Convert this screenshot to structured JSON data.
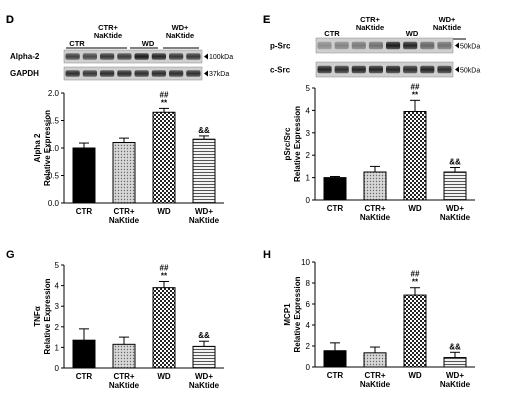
{
  "categories": [
    "CTR",
    "CTR+\nNaKtide",
    "WD",
    "WD+\nNaKtide"
  ],
  "blots": {
    "D": {
      "group_labels": [
        "CTR",
        "CTR+\nNaKtide",
        "WD",
        "WD+\nNaKtide"
      ],
      "rows": [
        {
          "name": "Alpha-2",
          "size": "100kDa"
        },
        {
          "name": "GAPDH",
          "size": "37kDa"
        }
      ]
    },
    "E": {
      "group_labels": [
        "CTR",
        "CTR+\nNaKtide",
        "WD",
        "WD+\nNaKtide"
      ],
      "rows": [
        {
          "name": "p-Src",
          "size": "50kDa"
        },
        {
          "name": "c-Src",
          "size": "50kDa"
        }
      ]
    }
  },
  "chart_data": [
    {
      "panel": "D",
      "type": "bar",
      "categories": [
        "CTR",
        "CTR+\nNaKtide",
        "WD",
        "WD+\nNaKtide"
      ],
      "values": [
        1.0,
        1.1,
        1.65,
        1.16
      ],
      "errors": [
        0.09,
        0.08,
        0.07,
        0.06
      ],
      "ylabel": "Alpha 2\nRelative Expression",
      "ylim": [
        0.0,
        2.0
      ],
      "yticks": [
        "0.0",
        "0.5",
        "1.0",
        "1.5",
        "2.0"
      ],
      "annotations": [
        "",
        "",
        "##\n**",
        "&&"
      ],
      "fills": [
        "solid",
        "dots",
        "check",
        "hatch"
      ]
    },
    {
      "panel": "E",
      "type": "bar",
      "categories": [
        "CTR",
        "CTR+\nNaKtide",
        "WD",
        "WD+\nNaKtide"
      ],
      "values": [
        1.0,
        1.25,
        3.95,
        1.25
      ],
      "errors": [
        0.05,
        0.25,
        0.5,
        0.2
      ],
      "ylabel": "pSrc/Src\nRelative Expression",
      "ylim": [
        0,
        5
      ],
      "yticks": [
        "0",
        "1",
        "2",
        "3",
        "4",
        "5"
      ],
      "annotations": [
        "",
        "",
        "##\n**",
        "&&"
      ],
      "fills": [
        "solid",
        "dots",
        "check",
        "hatch"
      ]
    },
    {
      "panel": "G",
      "type": "bar",
      "categories": [
        "CTR",
        "CTR+\nNaKtide",
        "WD",
        "WD+\nNaKtide"
      ],
      "values": [
        1.35,
        1.15,
        3.9,
        1.05
      ],
      "errors": [
        0.55,
        0.35,
        0.3,
        0.25
      ],
      "ylabel": "TNFα\nRelative Expression",
      "ylim": [
        0,
        5
      ],
      "yticks": [
        "0",
        "1",
        "2",
        "3",
        "4",
        "5"
      ],
      "annotations": [
        "",
        "",
        "##\n**",
        "&&"
      ],
      "fills": [
        "solid",
        "dots",
        "check",
        "hatch"
      ]
    },
    {
      "panel": "H",
      "type": "bar",
      "categories": [
        "CTR",
        "CTR+\nNaKtide",
        "WD",
        "WD+\nNaKtide"
      ],
      "values": [
        1.55,
        1.35,
        6.85,
        0.9
      ],
      "errors": [
        0.75,
        0.55,
        0.7,
        0.5
      ],
      "ylabel": "MCP1\nRelative Expression",
      "ylim": [
        0,
        10
      ],
      "yticks": [
        "0",
        "2",
        "4",
        "6",
        "8",
        "10"
      ],
      "annotations": [
        "",
        "",
        "##\n**",
        "&&"
      ],
      "fills": [
        "solid",
        "dots",
        "check",
        "hatch"
      ]
    }
  ]
}
